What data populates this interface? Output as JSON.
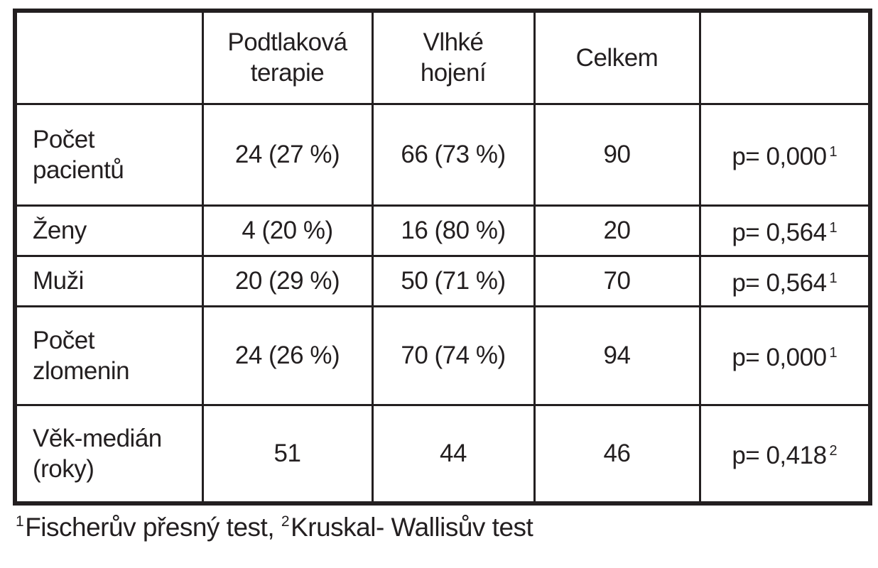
{
  "table": {
    "header": [
      [
        "Podtlaková",
        "terapie"
      ],
      [
        "Vlhké",
        "hojení"
      ],
      [
        "Celkem"
      ]
    ],
    "rows": [
      {
        "label": [
          "Počet",
          "pacientů"
        ],
        "cells": [
          "24 (27 %)",
          "66 (73 %)",
          "90"
        ],
        "p": "p= 0,000",
        "note": "1"
      },
      {
        "label": [
          "Ženy"
        ],
        "cells": [
          "4 (20 %)",
          "16 (80 %)",
          "20"
        ],
        "p": "p= 0,564",
        "note": "1"
      },
      {
        "label": [
          "Muži"
        ],
        "cells": [
          "20 (29 %)",
          "50 (71 %)",
          "70"
        ],
        "p": "p= 0,564",
        "note": "1"
      },
      {
        "label": [
          "Počet",
          "zlomenin"
        ],
        "cells": [
          "24 (26 %)",
          "70 (74 %)",
          "94"
        ],
        "p": "p= 0,000",
        "note": "1"
      },
      {
        "label": [
          "Věk-medián",
          "(roky)"
        ],
        "cells": [
          "51",
          "44",
          "46"
        ],
        "p": "p= 0,418",
        "note": "2"
      }
    ]
  },
  "footnotes": [
    {
      "mark": "1",
      "text": "Fischerův přesný test,"
    },
    {
      "mark": "2",
      "text": "Kruskal- Wallisův test"
    }
  ]
}
